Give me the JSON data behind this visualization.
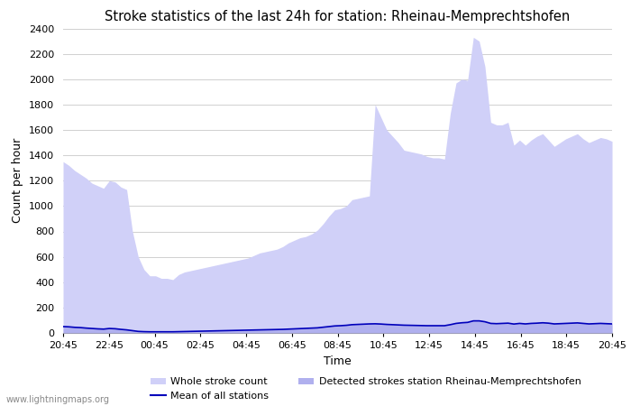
{
  "title": "Stroke statistics of the last 24h for station: Rheinau-Memprechtshofen",
  "xlabel": "Time",
  "ylabel": "Count per hour",
  "watermark": "www.lightningmaps.org",
  "xlim_ticks": [
    "20:45",
    "22:45",
    "00:45",
    "02:45",
    "04:45",
    "06:45",
    "08:45",
    "10:45",
    "12:45",
    "14:45",
    "16:45",
    "18:45",
    "20:45"
  ],
  "ylim": [
    0,
    2400
  ],
  "yticks": [
    0,
    200,
    400,
    600,
    800,
    1000,
    1200,
    1400,
    1600,
    1800,
    2000,
    2200,
    2400
  ],
  "whole_stroke_color": "#d0d0f8",
  "detected_stroke_color": "#b0b0ee",
  "mean_line_color": "#0000bb",
  "whole_stroke_data": [
    1350,
    1320,
    1280,
    1250,
    1220,
    1180,
    1160,
    1140,
    1200,
    1190,
    1150,
    1130,
    800,
    600,
    500,
    450,
    450,
    430,
    430,
    420,
    460,
    480,
    490,
    500,
    510,
    520,
    530,
    540,
    550,
    560,
    570,
    580,
    590,
    610,
    630,
    640,
    650,
    660,
    680,
    710,
    730,
    750,
    760,
    780,
    810,
    860,
    920,
    970,
    980,
    1000,
    1050,
    1060,
    1070,
    1080,
    1800,
    1700,
    1600,
    1550,
    1500,
    1440,
    1430,
    1420,
    1410,
    1390,
    1380,
    1380,
    1370,
    1730,
    1970,
    2000,
    1990,
    2330,
    2300,
    2100,
    1660,
    1640,
    1640,
    1660,
    1480,
    1520,
    1480,
    1520,
    1550,
    1570,
    1520,
    1470,
    1500,
    1530,
    1550,
    1570,
    1530,
    1500,
    1520,
    1540,
    1530,
    1510
  ],
  "detected_stroke_data": [
    55,
    52,
    48,
    45,
    42,
    38,
    36,
    34,
    38,
    36,
    32,
    28,
    20,
    15,
    12,
    11,
    11,
    10,
    10,
    10,
    12,
    13,
    14,
    15,
    16,
    17,
    18,
    19,
    20,
    21,
    22,
    23,
    24,
    25,
    27,
    28,
    29,
    30,
    32,
    34,
    36,
    38,
    40,
    42,
    45,
    50,
    55,
    60,
    62,
    65,
    70,
    72,
    74,
    76,
    78,
    75,
    72,
    70,
    68,
    66,
    65,
    64,
    63,
    62,
    62,
    62,
    62,
    70,
    80,
    85,
    88,
    100,
    100,
    95,
    80,
    78,
    80,
    82,
    75,
    80,
    76,
    80,
    82,
    85,
    82,
    76,
    78,
    80,
    82,
    84,
    80,
    76,
    78,
    80,
    78,
    76
  ],
  "mean_line_data": [
    50,
    48,
    44,
    42,
    38,
    35,
    32,
    30,
    35,
    33,
    28,
    24,
    18,
    12,
    10,
    9,
    9,
    9,
    9,
    9,
    10,
    11,
    12,
    13,
    14,
    15,
    16,
    17,
    18,
    19,
    20,
    21,
    22,
    23,
    24,
    25,
    26,
    27,
    28,
    30,
    32,
    34,
    36,
    38,
    40,
    45,
    50,
    55,
    57,
    60,
    65,
    67,
    69,
    71,
    72,
    70,
    67,
    65,
    63,
    61,
    60,
    59,
    58,
    57,
    57,
    57,
    57,
    65,
    75,
    80,
    83,
    95,
    95,
    88,
    75,
    73,
    75,
    77,
    70,
    75,
    71,
    75,
    77,
    80,
    77,
    71,
    73,
    75,
    77,
    79,
    75,
    71,
    73,
    75,
    73,
    71
  ],
  "legend_order": [
    "whole",
    "mean",
    "detected"
  ]
}
